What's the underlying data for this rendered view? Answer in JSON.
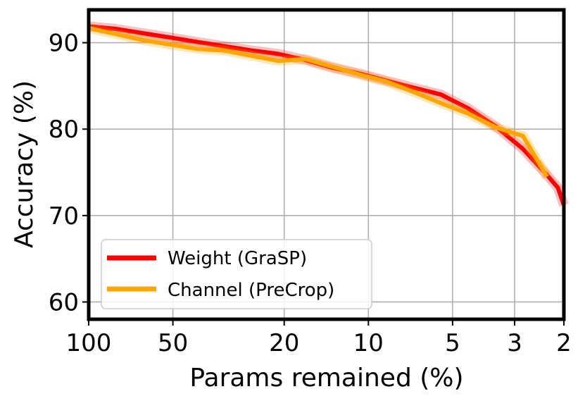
{
  "chart_data": {
    "type": "line",
    "xlabel": "Params remained (%)",
    "ylabel": "Accuracy (%)",
    "x_scale": "log",
    "x_reversed": true,
    "xlim": [
      100,
      2
    ],
    "ylim": [
      58,
      93.8
    ],
    "x_ticks": [
      100,
      50,
      20,
      10,
      5,
      3,
      2
    ],
    "x_tick_labels": [
      "100",
      "50",
      "20",
      "10",
      "5",
      "3",
      "2"
    ],
    "y_ticks": [
      60,
      70,
      80,
      90
    ],
    "y_tick_labels": [
      "60",
      "70",
      "80",
      "90"
    ],
    "grid": true,
    "legend_position": "lower-left",
    "series": [
      {
        "name": "Weight (GraSP)",
        "color": "#ff0000",
        "x": [
          100,
          80,
          64,
          51.2,
          41,
          32.8,
          26.2,
          21,
          16.8,
          13.4,
          10.7,
          8.6,
          6.9,
          5.5,
          4.4,
          3.5,
          2.8,
          2.3,
          2.1,
          2.0
        ],
        "y": [
          91.9,
          91.6,
          91.1,
          90.6,
          90.1,
          89.6,
          89.1,
          88.7,
          88.0,
          87.1,
          86.4,
          85.6,
          84.8,
          84.0,
          82.4,
          80.3,
          77.7,
          74.7,
          73.2,
          71.2
        ]
      },
      {
        "name": "Channel (PreCrop)",
        "color": "#ffa500",
        "x": [
          100,
          80,
          64,
          51.2,
          41,
          32.8,
          26.2,
          21,
          16.8,
          13.4,
          10.7,
          8.6,
          6.9,
          5.5,
          4.4,
          3.5,
          2.8,
          2.3
        ],
        "y": [
          91.7,
          91.0,
          90.3,
          89.8,
          89.3,
          89.1,
          88.5,
          87.9,
          88.1,
          87.2,
          86.3,
          85.5,
          84.3,
          83.0,
          81.8,
          80.2,
          79.2,
          74.5
        ]
      }
    ]
  }
}
